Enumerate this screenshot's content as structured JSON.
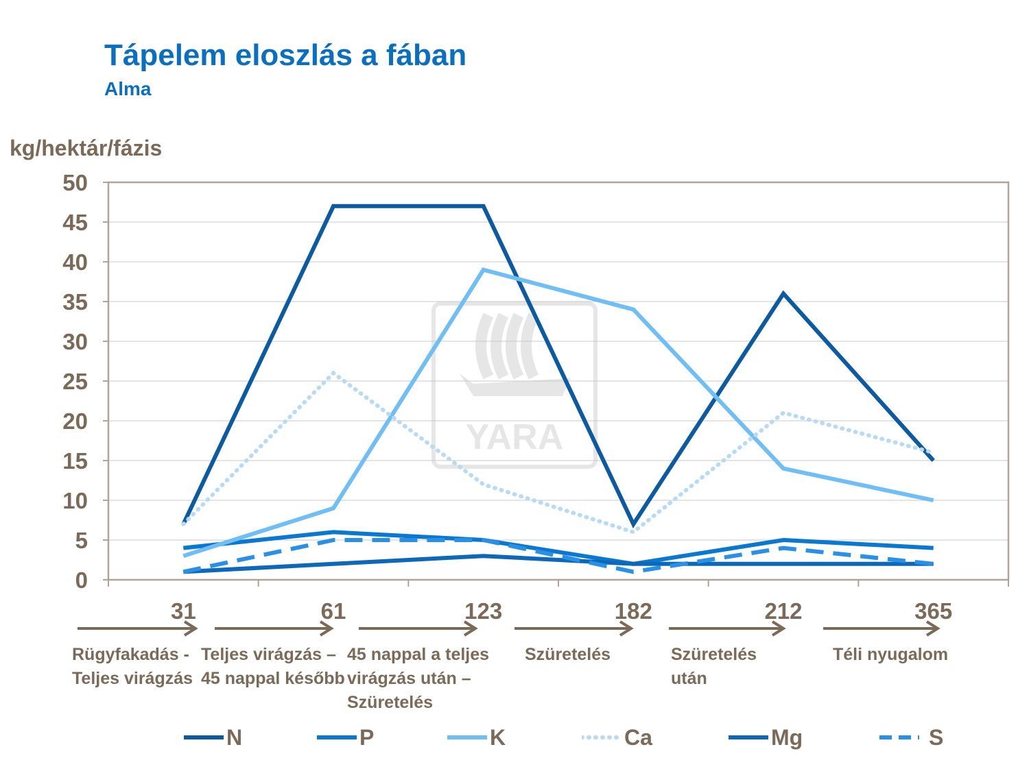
{
  "header": {
    "title": "Tápelem eloszlás a fában",
    "subtitle": "Alma"
  },
  "chart_data": {
    "type": "line",
    "title": "Tápelem eloszlás a fában",
    "subtitle": "Alma",
    "ylabel": "kg/hektár/fázis",
    "xlabel": "",
    "ylim": [
      0,
      50
    ],
    "yticks": [
      0,
      5,
      10,
      15,
      20,
      25,
      30,
      35,
      40,
      45,
      50
    ],
    "categories": [
      "31",
      "61",
      "123",
      "182",
      "212",
      "365"
    ],
    "grid": true,
    "legend_position": "bottom",
    "series": [
      {
        "name": "N",
        "values": [
          7,
          47,
          47,
          7,
          36,
          15
        ],
        "color": "#0b5aa2",
        "style": "solid"
      },
      {
        "name": "P",
        "values": [
          4,
          6,
          5,
          2,
          5,
          4
        ],
        "color": "#0a78d1",
        "style": "solid"
      },
      {
        "name": "K",
        "values": [
          3,
          9,
          39,
          34,
          14,
          10
        ],
        "color": "#6fbef6",
        "style": "solid"
      },
      {
        "name": "Ca",
        "values": [
          7,
          26,
          12,
          6,
          21,
          16
        ],
        "color": "#b9daf3",
        "style": "dotted"
      },
      {
        "name": "Mg",
        "values": [
          1,
          2,
          3,
          2,
          2,
          2
        ],
        "color": "#0d68b8",
        "style": "solid"
      },
      {
        "name": "S",
        "values": [
          1,
          5,
          5,
          1,
          4,
          2
        ],
        "color": "#2a8fe6",
        "style": "dashed"
      }
    ],
    "phases": [
      "Rügyfakadás - Teljes virágzás",
      "Teljes virágzás – 45 nappal később",
      "45 nappal a teljes virágzás után – Szüretelés",
      "Szüretelés",
      "Szüretelés után",
      "Téli nyugalom"
    ],
    "watermark": "YARA"
  },
  "colors": {
    "title": "#0a6fc0",
    "text": "#7b6a58",
    "frame": "#b3a394",
    "grid": "#c8c8c8"
  }
}
